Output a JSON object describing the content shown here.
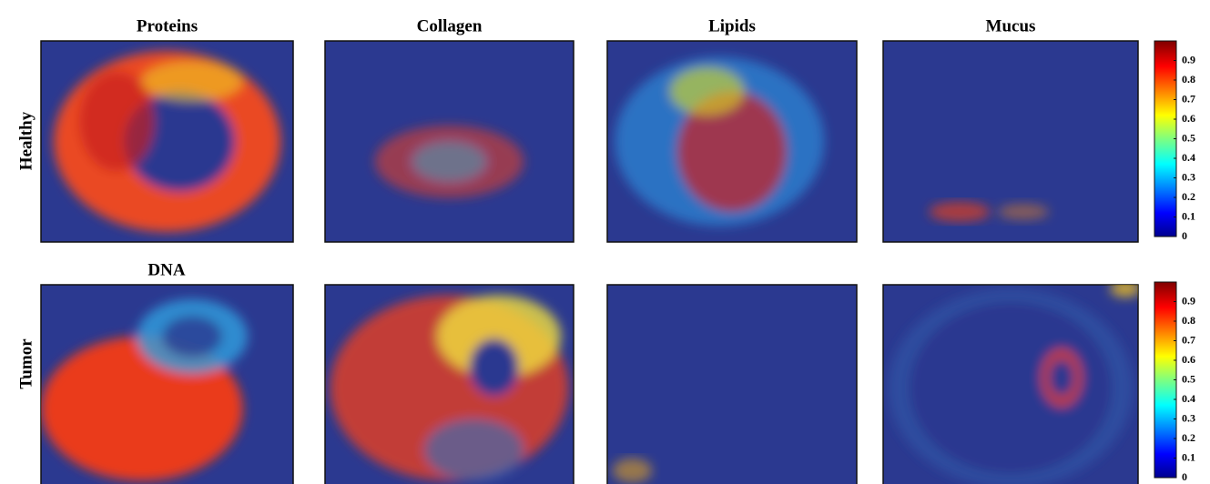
{
  "columns": [
    "Proteins",
    "Collagen",
    "Lipids",
    "Mucus"
  ],
  "rows": [
    "Healthy",
    "Tumor"
  ],
  "panel_label": "DNA",
  "colorbar": {
    "ticks": [
      0,
      0.1,
      0.2,
      0.3,
      0.4,
      0.5,
      0.6,
      0.7,
      0.8,
      0.9
    ]
  }
}
